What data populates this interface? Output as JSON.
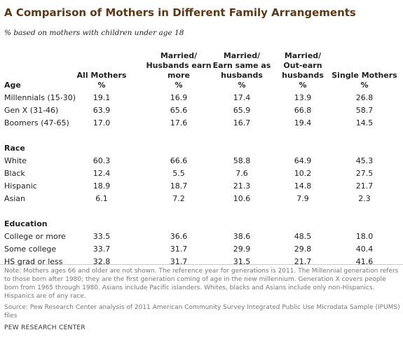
{
  "header": {
    "title": "A Comparison of Mothers in Different Family Arrangements",
    "subtitle": "% based on mothers with children under age 18"
  },
  "table": {
    "columns": [
      {
        "lines": [
          "All Mothers"
        ],
        "unit": "%"
      },
      {
        "lines": [
          "Married/",
          "Husbands earn",
          "more"
        ],
        "unit": "%"
      },
      {
        "lines": [
          "Married/",
          "Earn same as",
          "husbands"
        ],
        "unit": "%"
      },
      {
        "lines": [
          "Married/",
          "Out-earn",
          "husbands"
        ],
        "unit": "%"
      },
      {
        "lines": [
          "Single Mothers"
        ],
        "unit": "%"
      }
    ],
    "sections": [
      {
        "title": "Age",
        "rows": [
          {
            "label": "Millennials (15-30)",
            "cells": [
              "19.1",
              "16.9",
              "17.4",
              "13.9",
              "26.8"
            ]
          },
          {
            "label": "Gen X (31-46)",
            "cells": [
              "63.9",
              "65.6",
              "65.9",
              "66.8",
              "58.7"
            ]
          },
          {
            "label": "Boomers (47-65)",
            "cells": [
              "17.0",
              "17.6",
              "16.7",
              "19.4",
              "14.5"
            ]
          }
        ]
      },
      {
        "title": "Race",
        "rows": [
          {
            "label": "White",
            "cells": [
              "60.3",
              "66.6",
              "58.8",
              "64.9",
              "45.3"
            ]
          },
          {
            "label": "Black",
            "cells": [
              "12.4",
              "5.5",
              "7.6",
              "10.2",
              "27.5"
            ]
          },
          {
            "label": "Hispanic",
            "cells": [
              "18.9",
              "18.7",
              "21.3",
              "14.8",
              "21.7"
            ]
          },
          {
            "label": "Asian",
            "cells": [
              "6.1",
              "7.2",
              "10.6",
              "7.9",
              "2.3"
            ]
          }
        ]
      },
      {
        "title": "Education",
        "rows": [
          {
            "label": "College or more",
            "cells": [
              "33.5",
              "36.6",
              "38.6",
              "48.5",
              "18.0"
            ]
          },
          {
            "label": "Some college",
            "cells": [
              "33.7",
              "31.7",
              "29.9",
              "29.8",
              "40.4"
            ]
          },
          {
            "label": "HS grad or less",
            "cells": [
              "32.8",
              "31.7",
              "31.5",
              "21.7",
              "41.6"
            ]
          }
        ]
      }
    ]
  },
  "footer": {
    "note": "Note: Mothers ages 66 and older are not shown. The reference year for generations is 2011. The Millennial generation refers to those born after 1980; they are the first generation coming of age in the new millennium. Generation X covers people born from 1965 through 1980. Asians include Pacific islanders. Whites, blacks and Asians include only non-Hispanics. Hispanics are of any race.",
    "source": "Source: Pew Research Center analysis of 2011 American Community Survey Integrated Public Use Microdata Sample (IPUMS) files",
    "credit": "PEW RESEARCH CENTER"
  }
}
